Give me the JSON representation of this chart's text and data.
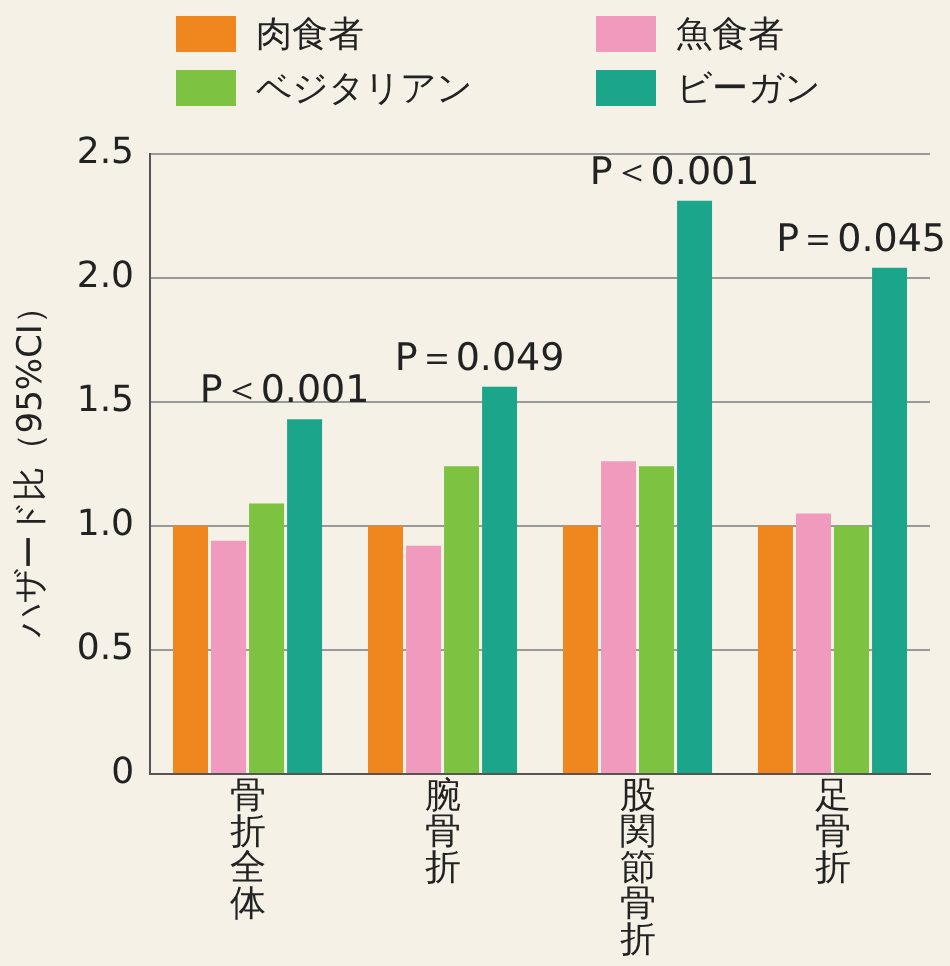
{
  "chart_data": {
    "type": "bar",
    "ylabel": "ハザード比（95%CI）",
    "categories": [
      "骨折全体",
      "腕骨折",
      "股関節骨折",
      "足骨折"
    ],
    "series": [
      {
        "name": "肉食者",
        "color": "#f0861e",
        "values": [
          1.0,
          1.0,
          1.0,
          1.0
        ]
      },
      {
        "name": "魚食者",
        "color": "#f09bbd",
        "values": [
          0.94,
          0.92,
          1.26,
          1.05
        ]
      },
      {
        "name": "ベジタリアン",
        "color": "#7dc241",
        "values": [
          1.09,
          1.24,
          1.24,
          1.0
        ]
      },
      {
        "name": "ビーガン",
        "color": "#1ba68b",
        "values": [
          1.43,
          1.56,
          2.31,
          2.04
        ]
      }
    ],
    "ylim": [
      0,
      2.5
    ],
    "yticks": [
      0,
      0.5,
      {
        "value": 1,
        "label": "1.0"
      },
      1.5,
      {
        "value": 2,
        "label": "2.0"
      },
      2.5
    ],
    "grid": "y",
    "legend": "top left",
    "annotations": [
      "P＜0.001",
      "P＝0.049",
      "P＜0.001",
      "P＝0.045"
    ]
  }
}
